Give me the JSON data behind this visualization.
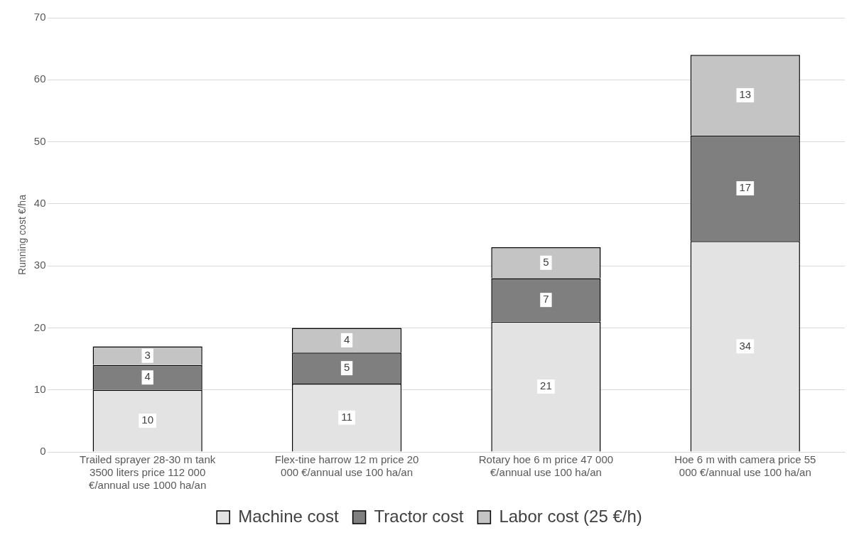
{
  "chart_data": {
    "type": "bar",
    "stacked": true,
    "ylabel": "Running cost €/ha",
    "categories": [
      "Trailed sprayer 28-30 m tank 3500 liters price 112 000 €/annual use 1000 ha/an",
      "Flex-tine harrow 12 m price 20 000 €/annual use 100 ha/an",
      "Rotary hoe 6 m price 47 000 €/annual use 100 ha/an",
      "Hoe 6 m with camera price 55 000 €/annual use 100 ha/an"
    ],
    "series": [
      {
        "name": "Machine cost",
        "color": "#e3e3e3",
        "values": [
          10,
          11,
          21,
          34
        ]
      },
      {
        "name": "Tractor cost",
        "color": "#7f7f7f",
        "values": [
          4,
          5,
          7,
          17
        ]
      },
      {
        "name": "Labor cost (25 €/h)",
        "color": "#c4c4c4",
        "values": [
          3,
          4,
          5,
          13
        ]
      }
    ],
    "ylim": [
      0,
      70
    ],
    "yticks": [
      0,
      10,
      20,
      30,
      40,
      50,
      60,
      70
    ],
    "grid": "y",
    "legend": "bottom",
    "data_labels": true
  }
}
